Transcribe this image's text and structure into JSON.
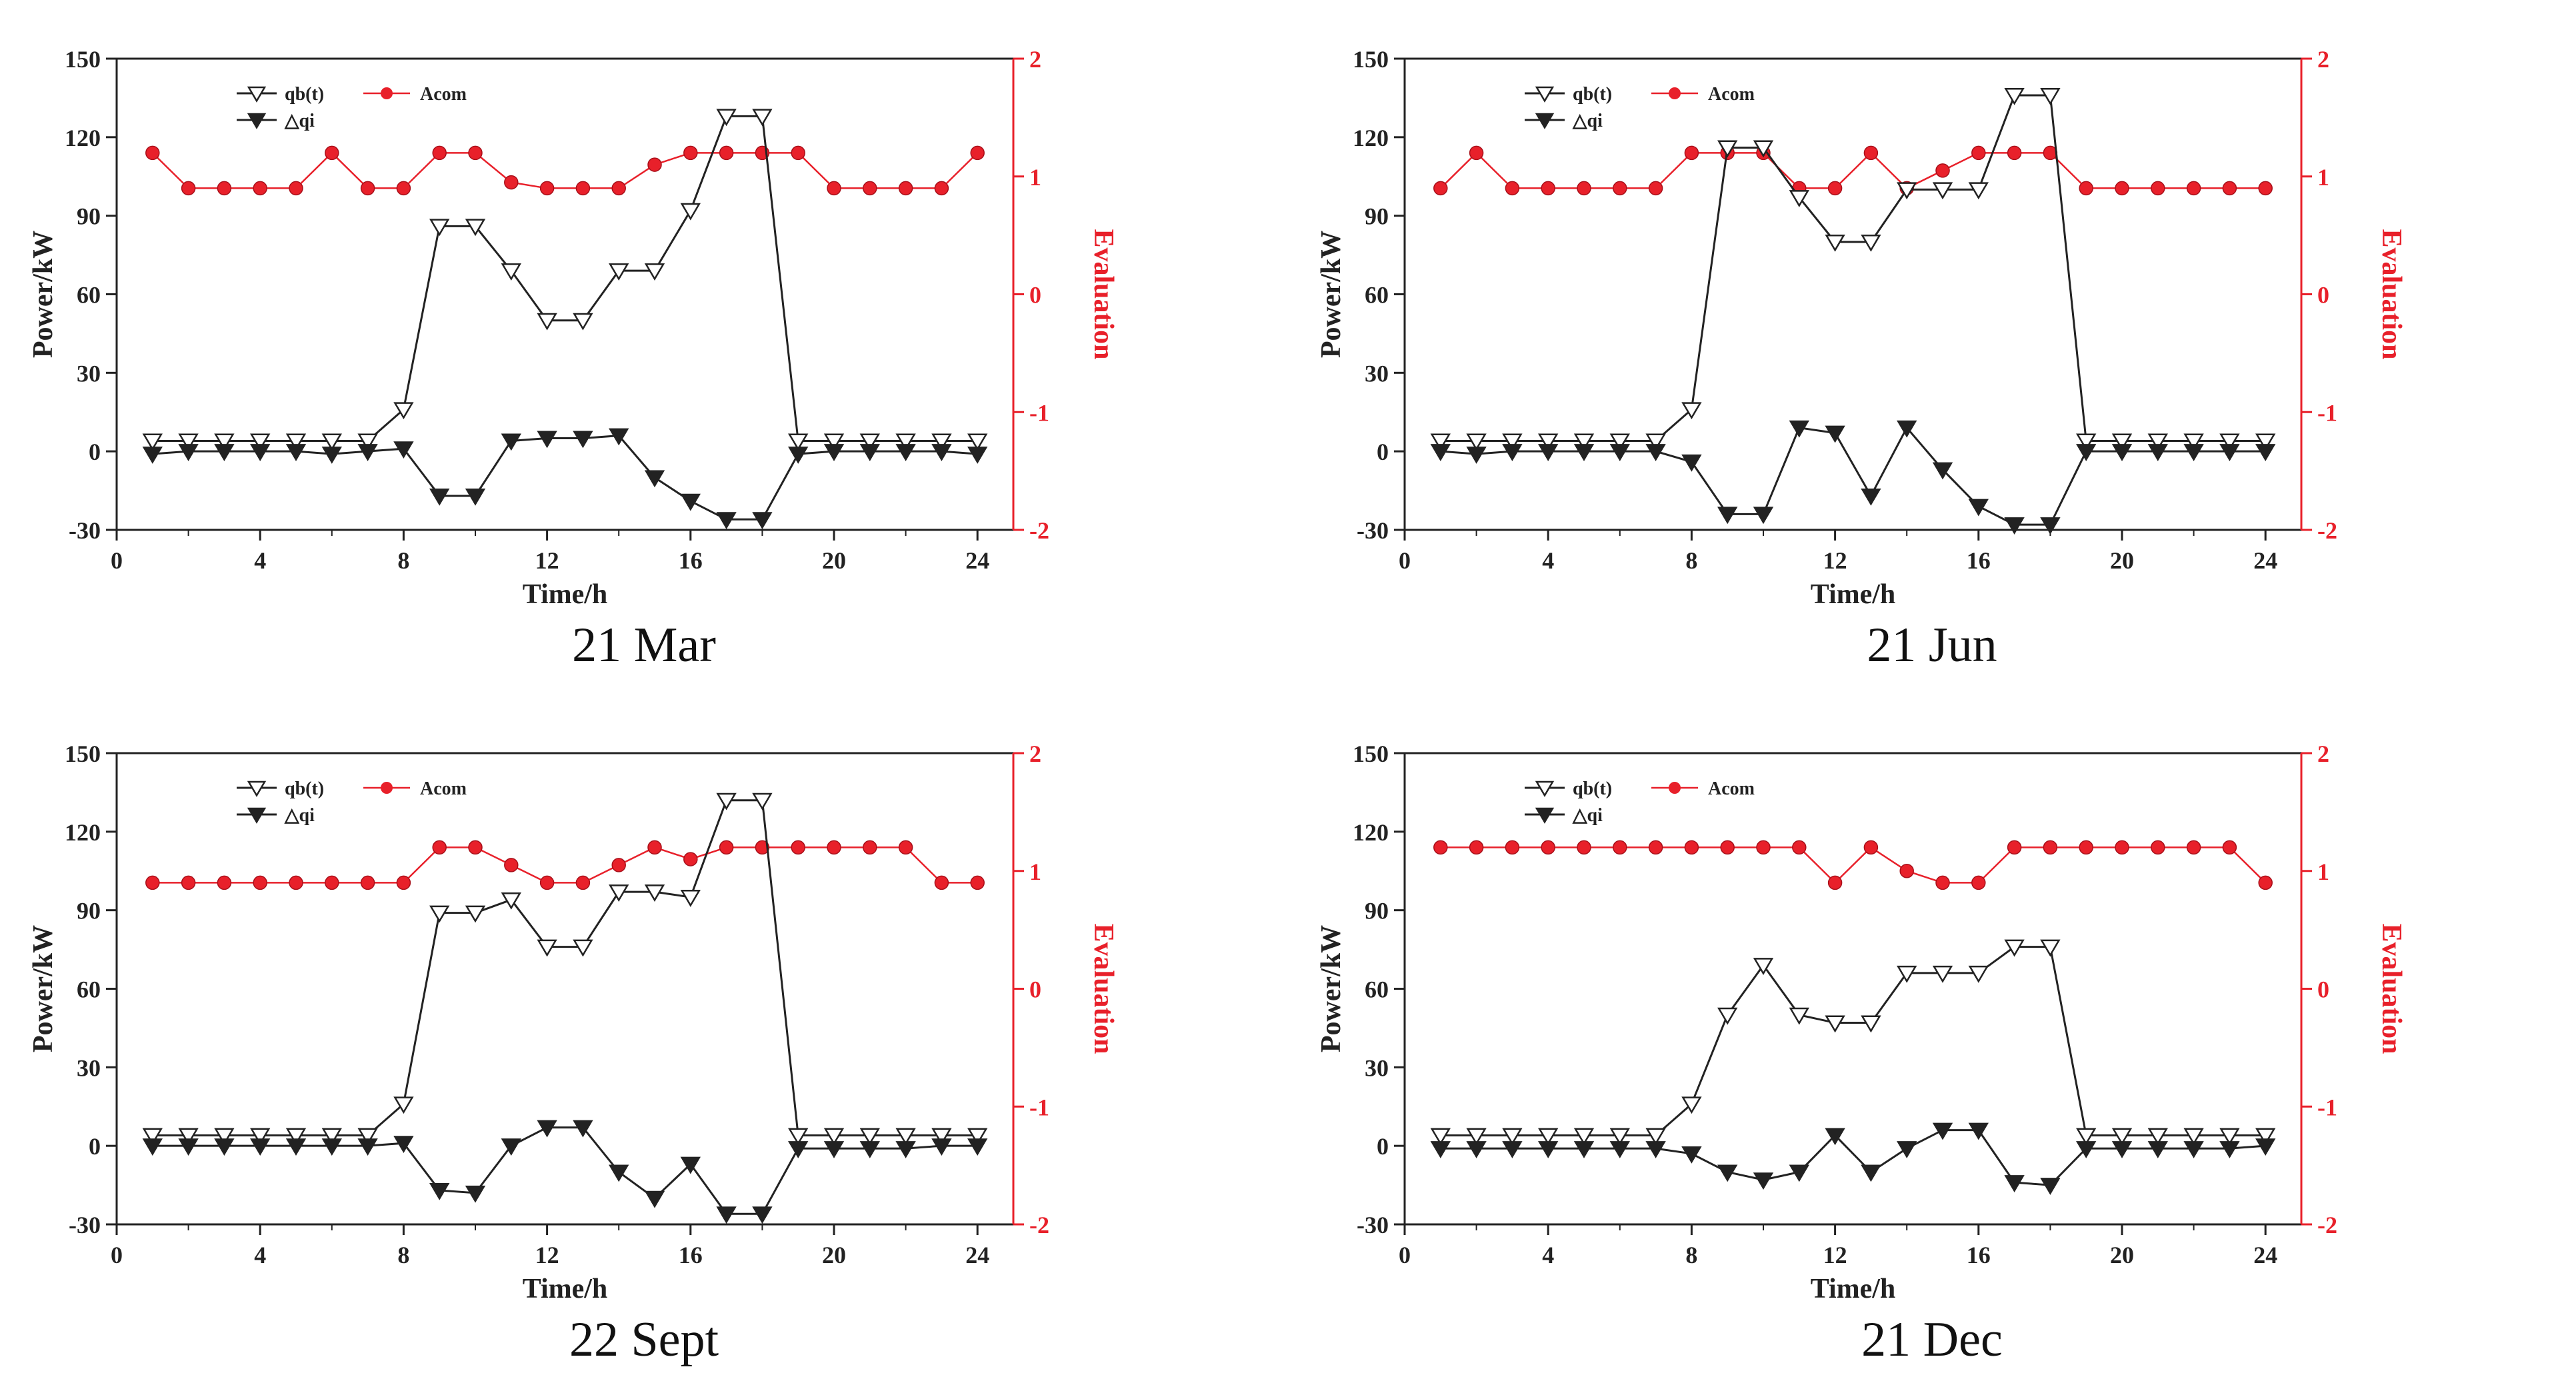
{
  "colors": {
    "power": "#222222",
    "evaluation": "#e8202a",
    "qb_fill": "#ffffff"
  },
  "chart_data": [
    {
      "type": "line",
      "caption": "21 Mar",
      "xlabel": "Time/h",
      "ylabel": "Power/kW",
      "y2label": "Evaluation",
      "xlim": [
        0,
        25
      ],
      "ylim": [
        -30,
        150
      ],
      "y2lim": [
        -2,
        2
      ],
      "xticks": [
        "0",
        "4",
        "8",
        "12",
        "16",
        "20",
        "24"
      ],
      "yticks": [
        "-30",
        "0",
        "30",
        "60",
        "90",
        "120",
        "150"
      ],
      "y2ticks": [
        "-2",
        "-1",
        "0",
        "1",
        "2"
      ],
      "legend": {
        "position": "top-left"
      },
      "x": [
        1,
        2,
        3,
        4,
        5,
        6,
        7,
        8,
        9,
        10,
        11,
        12,
        13,
        14,
        15,
        16,
        17,
        18,
        19,
        20,
        21,
        22,
        23,
        24
      ],
      "series": [
        {
          "name": "qb(t)",
          "axis": "left",
          "values": [
            4,
            4,
            4,
            4,
            4,
            4,
            4,
            16,
            86,
            86,
            69,
            50,
            50,
            69,
            69,
            92,
            128,
            128,
            4,
            4,
            4,
            4,
            4,
            4
          ]
        },
        {
          "name": "△qi",
          "axis": "left",
          "values": [
            -1,
            0,
            0,
            0,
            0,
            -1,
            0,
            1,
            -17,
            -17,
            4,
            5,
            5,
            6,
            -10,
            -19,
            -26,
            -26,
            -1,
            0,
            0,
            0,
            0,
            -1
          ]
        },
        {
          "name": "Acom",
          "axis": "right",
          "values": [
            1.2,
            0.9,
            0.9,
            0.9,
            0.9,
            1.2,
            0.9,
            0.9,
            1.2,
            1.2,
            0.95,
            0.9,
            0.9,
            0.9,
            1.1,
            1.2,
            1.2,
            1.2,
            1.2,
            0.9,
            0.9,
            0.9,
            0.9,
            1.2
          ]
        }
      ]
    },
    {
      "type": "line",
      "caption": "21 Jun",
      "xlabel": "Time/h",
      "ylabel": "Power/kW",
      "y2label": "Evaluation",
      "xlim": [
        0,
        25
      ],
      "ylim": [
        -30,
        150
      ],
      "y2lim": [
        -2,
        2
      ],
      "xticks": [
        "0",
        "4",
        "8",
        "12",
        "16",
        "20",
        "24"
      ],
      "yticks": [
        "-30",
        "0",
        "30",
        "60",
        "90",
        "120",
        "150"
      ],
      "y2ticks": [
        "-2",
        "-1",
        "0",
        "1",
        "2"
      ],
      "legend": {
        "position": "top-left"
      },
      "x": [
        1,
        2,
        3,
        4,
        5,
        6,
        7,
        8,
        9,
        10,
        11,
        12,
        13,
        14,
        15,
        16,
        17,
        18,
        19,
        20,
        21,
        22,
        23,
        24
      ],
      "series": [
        {
          "name": "qb(t)",
          "axis": "left",
          "values": [
            4,
            4,
            4,
            4,
            4,
            4,
            4,
            16,
            116,
            116,
            97,
            80,
            80,
            100,
            100,
            100,
            136,
            136,
            4,
            4,
            4,
            4,
            4,
            4
          ]
        },
        {
          "name": "△qi",
          "axis": "left",
          "values": [
            0,
            -1,
            0,
            0,
            0,
            0,
            0,
            -4,
            -24,
            -24,
            9,
            7,
            -17,
            9,
            -7,
            -21,
            -28,
            -28,
            0,
            0,
            0,
            0,
            0,
            0
          ]
        },
        {
          "name": "Acom",
          "axis": "right",
          "values": [
            0.9,
            1.2,
            0.9,
            0.9,
            0.9,
            0.9,
            0.9,
            1.2,
            1.2,
            1.2,
            0.9,
            0.9,
            1.2,
            0.9,
            1.05,
            1.2,
            1.2,
            1.2,
            0.9,
            0.9,
            0.9,
            0.9,
            0.9,
            0.9
          ]
        }
      ]
    },
    {
      "type": "line",
      "caption": "22 Sept",
      "xlabel": "Time/h",
      "ylabel": "Power/kW",
      "y2label": "Evaluation",
      "xlim": [
        0,
        25
      ],
      "ylim": [
        -30,
        150
      ],
      "y2lim": [
        -2,
        2
      ],
      "xticks": [
        "0",
        "4",
        "8",
        "12",
        "16",
        "20",
        "24"
      ],
      "yticks": [
        "-30",
        "0",
        "30",
        "60",
        "90",
        "120",
        "150"
      ],
      "y2ticks": [
        "-2",
        "-1",
        "0",
        "1",
        "2"
      ],
      "legend": {
        "position": "top-left"
      },
      "x": [
        1,
        2,
        3,
        4,
        5,
        6,
        7,
        8,
        9,
        10,
        11,
        12,
        13,
        14,
        15,
        16,
        17,
        18,
        19,
        20,
        21,
        22,
        23,
        24
      ],
      "series": [
        {
          "name": "qb(t)",
          "axis": "left",
          "values": [
            4,
            4,
            4,
            4,
            4,
            4,
            4,
            16,
            89,
            89,
            94,
            76,
            76,
            97,
            97,
            95,
            132,
            132,
            4,
            4,
            4,
            4,
            4,
            4
          ]
        },
        {
          "name": "△qi",
          "axis": "left",
          "values": [
            0,
            0,
            0,
            0,
            0,
            0,
            0,
            1,
            -17,
            -18,
            0,
            7,
            7,
            -10,
            -20,
            -7,
            -26,
            -26,
            -1,
            -1,
            -1,
            -1,
            0,
            0
          ]
        },
        {
          "name": "Acom",
          "axis": "right",
          "values": [
            0.9,
            0.9,
            0.9,
            0.9,
            0.9,
            0.9,
            0.9,
            0.9,
            1.2,
            1.2,
            1.05,
            0.9,
            0.9,
            1.05,
            1.2,
            1.1,
            1.2,
            1.2,
            1.2,
            1.2,
            1.2,
            1.2,
            0.9,
            0.9
          ]
        }
      ]
    },
    {
      "type": "line",
      "caption": "21 Dec",
      "xlabel": "Time/h",
      "ylabel": "Power/kW",
      "y2label": "Evaluation",
      "xlim": [
        0,
        25
      ],
      "ylim": [
        -30,
        150
      ],
      "y2lim": [
        -2,
        2
      ],
      "xticks": [
        "0",
        "4",
        "8",
        "12",
        "16",
        "20",
        "24"
      ],
      "yticks": [
        "-30",
        "0",
        "30",
        "60",
        "90",
        "120",
        "150"
      ],
      "y2ticks": [
        "-2",
        "-1",
        "0",
        "1",
        "2"
      ],
      "legend": {
        "position": "top-left"
      },
      "x": [
        1,
        2,
        3,
        4,
        5,
        6,
        7,
        8,
        9,
        10,
        11,
        12,
        13,
        14,
        15,
        16,
        17,
        18,
        19,
        20,
        21,
        22,
        23,
        24
      ],
      "series": [
        {
          "name": "qb(t)",
          "axis": "left",
          "values": [
            4,
            4,
            4,
            4,
            4,
            4,
            4,
            16,
            50,
            69,
            50,
            47,
            47,
            66,
            66,
            66,
            76,
            76,
            4,
            4,
            4,
            4,
            4,
            4
          ]
        },
        {
          "name": "△qi",
          "axis": "left",
          "values": [
            -1,
            -1,
            -1,
            -1,
            -1,
            -1,
            -1,
            -3,
            -10,
            -13,
            -10,
            4,
            -10,
            -1,
            6,
            6,
            -14,
            -15,
            -1,
            -1,
            -1,
            -1,
            -1,
            0
          ]
        },
        {
          "name": "Acom",
          "axis": "right",
          "values": [
            1.2,
            1.2,
            1.2,
            1.2,
            1.2,
            1.2,
            1.2,
            1.2,
            1.2,
            1.2,
            1.2,
            0.9,
            1.2,
            1.0,
            0.9,
            0.9,
            1.2,
            1.2,
            1.2,
            1.2,
            1.2,
            1.2,
            1.2,
            0.9
          ]
        }
      ]
    }
  ]
}
